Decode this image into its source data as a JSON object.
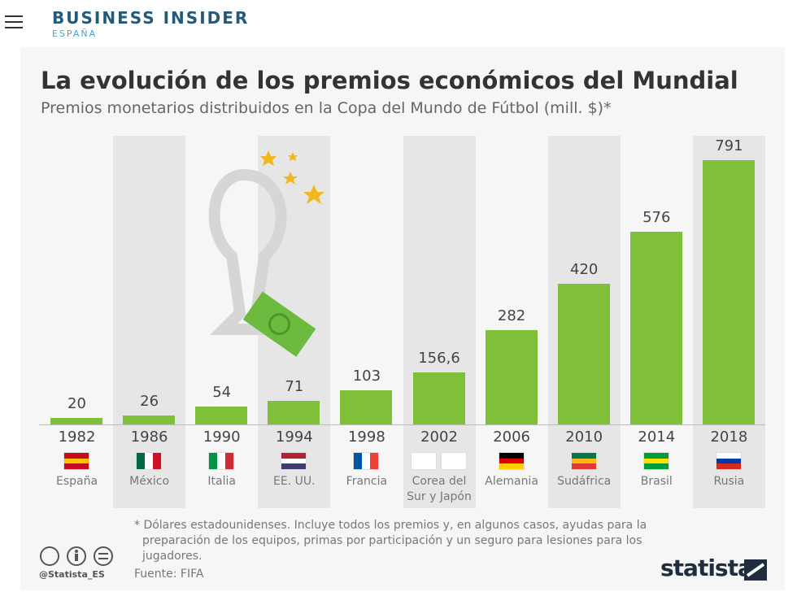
{
  "header": {
    "brand": "BUSINESS INSIDER",
    "edition": "ESPAÑA"
  },
  "chart_data": {
    "type": "bar",
    "title": "La evolución de los premios económicos del Mundial",
    "subtitle": "Premios monetarios distribuidos en la Copa del Mundo de Fútbol (mill. $)*",
    "categories": [
      "1982",
      "1986",
      "1990",
      "1994",
      "1998",
      "2002",
      "2006",
      "2010",
      "2014",
      "2018"
    ],
    "hosts": [
      "España",
      "México",
      "Italia",
      "EE. UU.",
      "Francia",
      "Corea del Sur y Japón",
      "Alemania",
      "Sudáfrica",
      "Brasil",
      "Rusia"
    ],
    "values": [
      20,
      26,
      54,
      71,
      103,
      156.6,
      282,
      420,
      576,
      791
    ],
    "value_labels": [
      "20",
      "26",
      "54",
      "71",
      "103",
      "156,6",
      "282",
      "420",
      "576",
      "791"
    ],
    "color": "#80bf3a"
  },
  "footer": {
    "note": "* Dólares estadounidenses. Incluye todos los premios y, en algunos casos, ayudas para la preparación de los equipos, primas por participación y un seguro para lesiones para los jugadores.",
    "source": "Fuente: FIFA",
    "handle": "@Statista_ES",
    "logo": "statista"
  }
}
